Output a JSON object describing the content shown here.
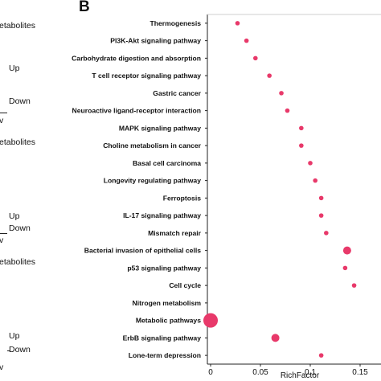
{
  "panel_label": "B",
  "left_strip": {
    "items": [
      {
        "text": "etabolites"
      },
      {
        "text": "Up"
      },
      {
        "text": "Down"
      },
      {
        "text": "v"
      },
      {
        "text": "etabolites"
      },
      {
        "text": "Up"
      },
      {
        "text": "Down"
      },
      {
        "text": "v"
      },
      {
        "text": "etabolites"
      },
      {
        "text": "Up"
      },
      {
        "text": "Down"
      },
      {
        "text": "v"
      }
    ]
  },
  "chart_data": {
    "type": "scatter",
    "xlabel": "RichFactor",
    "xlim": [
      0,
      0.155
    ],
    "xticks": [
      "0",
      "0.05",
      "0.1",
      "0.15"
    ],
    "xtick_values": [
      0,
      0.05,
      0.1,
      0.15
    ],
    "grid": false,
    "marker_color": "#e8396a",
    "categories": [
      "Thermogenesis",
      "PI3K-Akt signaling pathway",
      "Carbohydrate digestion and absorption",
      "T cell receptor signaling pathway",
      "Gastric cancer",
      "Neuroactive ligand-receptor interaction",
      "MAPK signaling pathway",
      "Choline metabolism in cancer",
      "Basal cell carcinoma",
      "Longevity regulating pathway",
      "Ferroptosis",
      "IL-17 signaling pathway",
      "Mismatch repair",
      "Bacterial invasion of epithelial cells",
      "p53 signaling pathway",
      "Cell cycle",
      "Nitrogen metabolism",
      "Metabolic pathways",
      "ErbB signaling pathway",
      "Lone-term depression"
    ],
    "x": [
      0.027,
      0.036,
      0.045,
      0.059,
      0.071,
      0.077,
      0.091,
      0.091,
      0.1,
      0.105,
      0.111,
      0.111,
      0.116,
      0.137,
      0.135,
      0.144,
      null,
      0.0,
      0.065,
      0.111
    ],
    "size": [
      1,
      1,
      1,
      1,
      1,
      1,
      1,
      1,
      1,
      1,
      1,
      1,
      1,
      3,
      1,
      1,
      null,
      6,
      3,
      1
    ]
  }
}
